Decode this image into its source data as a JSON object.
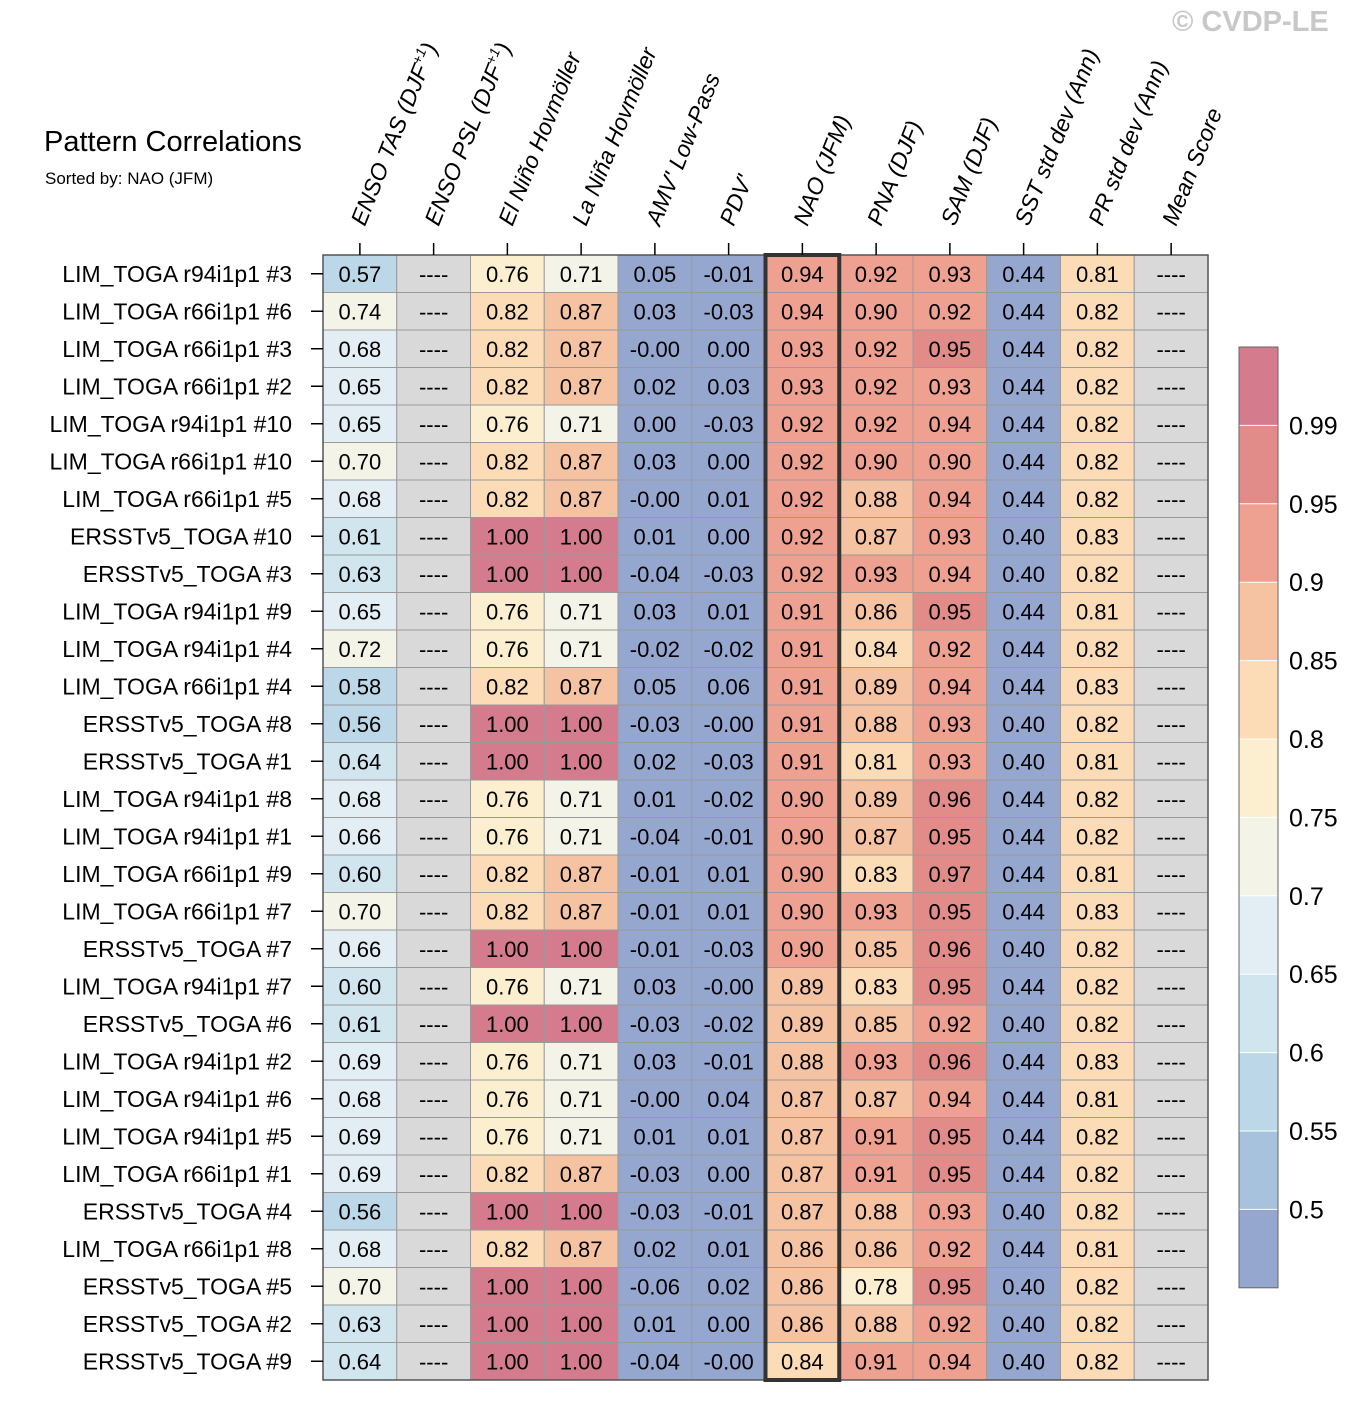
{
  "title": "Pattern Correlations",
  "subtitle": "Sorted by: NAO (JFM)",
  "watermark": "© CVDP-LE",
  "chart_data": {
    "type": "heatmap",
    "title": "Pattern Correlations",
    "sorted_by": "NAO (JFM)",
    "highlight_column": "NAO (JFM)",
    "missing_label": "----",
    "columns": [
      {
        "base": "ENSO TAS (DJF",
        "sup": "+1",
        "close": ")"
      },
      {
        "base": "ENSO PSL (DJF",
        "sup": "+1",
        "close": ")"
      },
      {
        "base": "El Niño Hovmöller",
        "sup": "",
        "close": ""
      },
      {
        "base": "La Niña Hovmöller",
        "sup": "",
        "close": ""
      },
      {
        "base": "AMV' Low-Pass",
        "sup": "",
        "close": ""
      },
      {
        "base": "PDV'",
        "sup": "",
        "close": ""
      },
      {
        "base": "NAO (JFM)",
        "sup": "",
        "close": ""
      },
      {
        "base": "PNA (DJF)",
        "sup": "",
        "close": ""
      },
      {
        "base": "SAM (DJF)",
        "sup": "",
        "close": ""
      },
      {
        "base": "SST std dev (Ann)",
        "sup": "",
        "close": ""
      },
      {
        "base": "PR std dev (Ann)",
        "sup": "",
        "close": ""
      },
      {
        "base": "Mean Score",
        "sup": "",
        "close": ""
      }
    ],
    "rows": [
      {
        "label": "LIM_TOGA r94i1p1 #3",
        "values": [
          "0.57",
          "----",
          "0.76",
          "0.71",
          "0.05",
          "-0.01",
          "0.94",
          "0.92",
          "0.93",
          "0.44",
          "0.81",
          "----"
        ]
      },
      {
        "label": "LIM_TOGA r66i1p1 #6",
        "values": [
          "0.74",
          "----",
          "0.82",
          "0.87",
          "0.03",
          "-0.03",
          "0.94",
          "0.90",
          "0.92",
          "0.44",
          "0.82",
          "----"
        ]
      },
      {
        "label": "LIM_TOGA r66i1p1 #3",
        "values": [
          "0.68",
          "----",
          "0.82",
          "0.87",
          "-0.00",
          "0.00",
          "0.93",
          "0.92",
          "0.95",
          "0.44",
          "0.82",
          "----"
        ]
      },
      {
        "label": "LIM_TOGA r66i1p1 #2",
        "values": [
          "0.65",
          "----",
          "0.82",
          "0.87",
          "0.02",
          "0.03",
          "0.93",
          "0.92",
          "0.93",
          "0.44",
          "0.82",
          "----"
        ]
      },
      {
        "label": "LIM_TOGA r94i1p1 #10",
        "values": [
          "0.65",
          "----",
          "0.76",
          "0.71",
          "0.00",
          "-0.03",
          "0.92",
          "0.92",
          "0.94",
          "0.44",
          "0.82",
          "----"
        ]
      },
      {
        "label": "LIM_TOGA r66i1p1 #10",
        "values": [
          "0.70",
          "----",
          "0.82",
          "0.87",
          "0.03",
          "0.00",
          "0.92",
          "0.90",
          "0.90",
          "0.44",
          "0.82",
          "----"
        ]
      },
      {
        "label": "LIM_TOGA r66i1p1 #5",
        "values": [
          "0.68",
          "----",
          "0.82",
          "0.87",
          "-0.00",
          "0.01",
          "0.92",
          "0.88",
          "0.94",
          "0.44",
          "0.82",
          "----"
        ]
      },
      {
        "label": "ERSSTv5_TOGA #10",
        "values": [
          "0.61",
          "----",
          "1.00",
          "1.00",
          "0.01",
          "0.00",
          "0.92",
          "0.87",
          "0.93",
          "0.40",
          "0.83",
          "----"
        ]
      },
      {
        "label": "ERSSTv5_TOGA #3",
        "values": [
          "0.63",
          "----",
          "1.00",
          "1.00",
          "-0.04",
          "-0.03",
          "0.92",
          "0.93",
          "0.94",
          "0.40",
          "0.82",
          "----"
        ]
      },
      {
        "label": "LIM_TOGA r94i1p1 #9",
        "values": [
          "0.65",
          "----",
          "0.76",
          "0.71",
          "0.03",
          "0.01",
          "0.91",
          "0.86",
          "0.95",
          "0.44",
          "0.81",
          "----"
        ]
      },
      {
        "label": "LIM_TOGA r94i1p1 #4",
        "values": [
          "0.72",
          "----",
          "0.76",
          "0.71",
          "-0.02",
          "-0.02",
          "0.91",
          "0.84",
          "0.92",
          "0.44",
          "0.82",
          "----"
        ]
      },
      {
        "label": "LIM_TOGA r66i1p1 #4",
        "values": [
          "0.58",
          "----",
          "0.82",
          "0.87",
          "0.05",
          "0.06",
          "0.91",
          "0.89",
          "0.94",
          "0.44",
          "0.83",
          "----"
        ]
      },
      {
        "label": "ERSSTv5_TOGA #8",
        "values": [
          "0.56",
          "----",
          "1.00",
          "1.00",
          "-0.03",
          "-0.00",
          "0.91",
          "0.88",
          "0.93",
          "0.40",
          "0.82",
          "----"
        ]
      },
      {
        "label": "ERSSTv5_TOGA #1",
        "values": [
          "0.64",
          "----",
          "1.00",
          "1.00",
          "0.02",
          "-0.03",
          "0.91",
          "0.81",
          "0.93",
          "0.40",
          "0.81",
          "----"
        ]
      },
      {
        "label": "LIM_TOGA r94i1p1 #8",
        "values": [
          "0.68",
          "----",
          "0.76",
          "0.71",
          "0.01",
          "-0.02",
          "0.90",
          "0.89",
          "0.96",
          "0.44",
          "0.82",
          "----"
        ]
      },
      {
        "label": "LIM_TOGA r94i1p1 #1",
        "values": [
          "0.66",
          "----",
          "0.76",
          "0.71",
          "-0.04",
          "-0.01",
          "0.90",
          "0.87",
          "0.95",
          "0.44",
          "0.82",
          "----"
        ]
      },
      {
        "label": "LIM_TOGA r66i1p1 #9",
        "values": [
          "0.60",
          "----",
          "0.82",
          "0.87",
          "-0.01",
          "0.01",
          "0.90",
          "0.83",
          "0.97",
          "0.44",
          "0.81",
          "----"
        ]
      },
      {
        "label": "LIM_TOGA r66i1p1 #7",
        "values": [
          "0.70",
          "----",
          "0.82",
          "0.87",
          "-0.01",
          "0.01",
          "0.90",
          "0.93",
          "0.95",
          "0.44",
          "0.83",
          "----"
        ]
      },
      {
        "label": "ERSSTv5_TOGA #7",
        "values": [
          "0.66",
          "----",
          "1.00",
          "1.00",
          "-0.01",
          "-0.03",
          "0.90",
          "0.85",
          "0.96",
          "0.40",
          "0.82",
          "----"
        ]
      },
      {
        "label": "LIM_TOGA r94i1p1 #7",
        "values": [
          "0.60",
          "----",
          "0.76",
          "0.71",
          "0.03",
          "-0.00",
          "0.89",
          "0.83",
          "0.95",
          "0.44",
          "0.82",
          "----"
        ]
      },
      {
        "label": "ERSSTv5_TOGA #6",
        "values": [
          "0.61",
          "----",
          "1.00",
          "1.00",
          "-0.03",
          "-0.02",
          "0.89",
          "0.85",
          "0.92",
          "0.40",
          "0.82",
          "----"
        ]
      },
      {
        "label": "LIM_TOGA r94i1p1 #2",
        "values": [
          "0.69",
          "----",
          "0.76",
          "0.71",
          "0.03",
          "-0.01",
          "0.88",
          "0.93",
          "0.96",
          "0.44",
          "0.83",
          "----"
        ]
      },
      {
        "label": "LIM_TOGA r94i1p1 #6",
        "values": [
          "0.68",
          "----",
          "0.76",
          "0.71",
          "-0.00",
          "0.04",
          "0.87",
          "0.87",
          "0.94",
          "0.44",
          "0.81",
          "----"
        ]
      },
      {
        "label": "LIM_TOGA r94i1p1 #5",
        "values": [
          "0.69",
          "----",
          "0.76",
          "0.71",
          "0.01",
          "0.01",
          "0.87",
          "0.91",
          "0.95",
          "0.44",
          "0.82",
          "----"
        ]
      },
      {
        "label": "LIM_TOGA r66i1p1 #1",
        "values": [
          "0.69",
          "----",
          "0.82",
          "0.87",
          "-0.03",
          "0.00",
          "0.87",
          "0.91",
          "0.95",
          "0.44",
          "0.82",
          "----"
        ]
      },
      {
        "label": "ERSSTv5_TOGA #4",
        "values": [
          "0.56",
          "----",
          "1.00",
          "1.00",
          "-0.03",
          "-0.01",
          "0.87",
          "0.88",
          "0.93",
          "0.40",
          "0.82",
          "----"
        ]
      },
      {
        "label": "LIM_TOGA r66i1p1 #8",
        "values": [
          "0.68",
          "----",
          "0.82",
          "0.87",
          "0.02",
          "0.01",
          "0.86",
          "0.86",
          "0.92",
          "0.44",
          "0.81",
          "----"
        ]
      },
      {
        "label": "ERSSTv5_TOGA #5",
        "values": [
          "0.70",
          "----",
          "1.00",
          "1.00",
          "-0.06",
          "0.02",
          "0.86",
          "0.78",
          "0.95",
          "0.40",
          "0.82",
          "----"
        ]
      },
      {
        "label": "ERSSTv5_TOGA #2",
        "values": [
          "0.63",
          "----",
          "1.00",
          "1.00",
          "0.01",
          "0.00",
          "0.86",
          "0.88",
          "0.92",
          "0.40",
          "0.82",
          "----"
        ]
      },
      {
        "label": "ERSSTv5_TOGA #9",
        "values": [
          "0.64",
          "----",
          "1.00",
          "1.00",
          "-0.04",
          "-0.00",
          "0.84",
          "0.91",
          "0.94",
          "0.40",
          "0.82",
          "----"
        ]
      }
    ],
    "colorbar": {
      "ticks": [
        "0.5",
        "0.55",
        "0.6",
        "0.65",
        "0.7",
        "0.75",
        "0.8",
        "0.85",
        "0.9",
        "0.95",
        "0.99"
      ],
      "levels": [
        0.5,
        0.55,
        0.6,
        0.65,
        0.7,
        0.75,
        0.8,
        0.85,
        0.9,
        0.95,
        0.99
      ],
      "colors": [
        "#95a6cf",
        "#a7c2dd",
        "#bbd7e8",
        "#d1e5ef",
        "#e2eef4",
        "#f3f3e8",
        "#fbefd0",
        "#fbdcb6",
        "#f6c3a2",
        "#eea091",
        "#e28c8a",
        "#d47b8e"
      ],
      "missing_color": "#d9d9d9"
    }
  }
}
